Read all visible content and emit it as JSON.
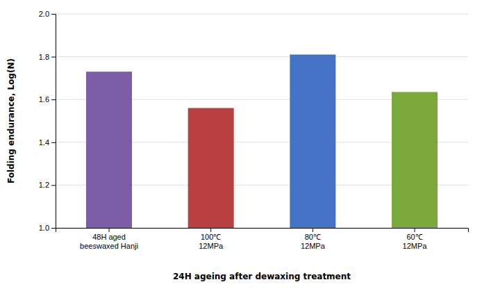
{
  "chart_data": {
    "type": "bar",
    "categories": [
      "48H aged\nbeeswaxed Hanji",
      "100℃\n12MPa",
      "80℃\n12MPa",
      "60℃\n12MPa"
    ],
    "values": [
      1.73,
      1.56,
      1.81,
      1.635
    ],
    "colors": [
      "#7B5EA7",
      "#B94040",
      "#4472C4",
      "#7BA83A"
    ],
    "xlabel": "24H ageing after dewaxing treatment",
    "ylabel": "Folding endurance, Log(N)",
    "ylim": [
      1.0,
      2.0
    ],
    "yticks": [
      {
        "value": 1.0,
        "label": "1.0"
      },
      1.2,
      1.4,
      1.6,
      1.8,
      {
        "value": 2.0,
        "label": "2.0"
      }
    ],
    "grid": true
  }
}
